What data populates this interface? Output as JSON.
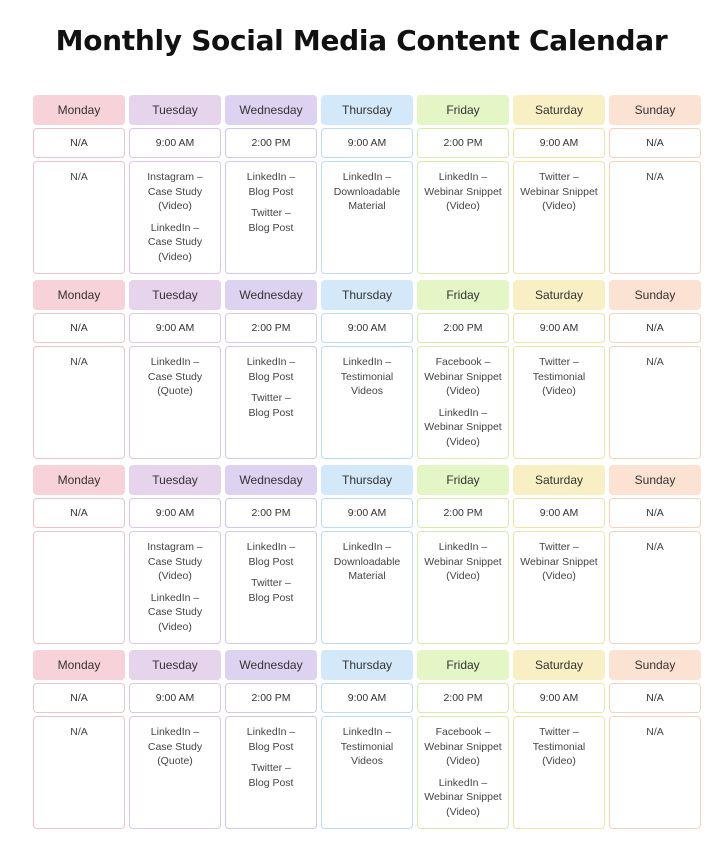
{
  "title": "Monthly Social Media Content Calendar",
  "colors": {
    "monday": "#f7d2d8",
    "tuesday": "#e6d3ec",
    "wednesday": "#ddd2f0",
    "thursday": "#d3e8f8",
    "friday": "#e4f5c6",
    "saturday": "#f8f0c4",
    "sunday": "#fbe2d2"
  },
  "weeks": [
    {
      "days": [
        {
          "day": "Monday",
          "time": "N/A",
          "posts": [
            "N/A"
          ]
        },
        {
          "day": "Tuesday",
          "time": "9:00 AM",
          "posts": [
            "Instagram –\nCase Study\n(Video)",
            "LinkedIn –\nCase Study\n(Video)"
          ]
        },
        {
          "day": "Wednesday",
          "time": "2:00 PM",
          "posts": [
            "LinkedIn –\nBlog Post",
            "Twitter –\nBlog Post"
          ]
        },
        {
          "day": "Thursday",
          "time": "9:00 AM",
          "posts": [
            "LinkedIn –\nDownloadable\nMaterial"
          ]
        },
        {
          "day": "Friday",
          "time": "2:00 PM",
          "posts": [
            "LinkedIn –\nWebinar Snippet\n(Video)"
          ]
        },
        {
          "day": "Saturday",
          "time": "9:00 AM",
          "posts": [
            "Twitter –\nWebinar Snippet\n(Video)"
          ]
        },
        {
          "day": "Sunday",
          "time": "N/A",
          "posts": [
            "N/A"
          ]
        }
      ]
    },
    {
      "days": [
        {
          "day": "Monday",
          "time": "N/A",
          "posts": [
            "N/A"
          ]
        },
        {
          "day": "Tuesday",
          "time": "9:00 AM",
          "posts": [
            "LinkedIn –\nCase Study\n(Quote)"
          ]
        },
        {
          "day": "Wednesday",
          "time": "2:00 PM",
          "posts": [
            "LinkedIn –\nBlog Post",
            "Twitter –\nBlog Post"
          ]
        },
        {
          "day": "Thursday",
          "time": "9:00 AM",
          "posts": [
            "LinkedIn –\nTestimonial\nVideos"
          ]
        },
        {
          "day": "Friday",
          "time": "2:00 PM",
          "posts": [
            "Facebook –\nWebinar Snippet\n(Video)",
            "LinkedIn –\nWebinar Snippet\n(Video)"
          ]
        },
        {
          "day": "Saturday",
          "time": "9:00 AM",
          "posts": [
            "Twitter –\nTestimonial\n(Video)"
          ]
        },
        {
          "day": "Sunday",
          "time": "N/A",
          "posts": [
            "N/A"
          ]
        }
      ]
    },
    {
      "days": [
        {
          "day": "Monday",
          "time": "N/A",
          "posts": []
        },
        {
          "day": "Tuesday",
          "time": "9:00 AM",
          "posts": [
            "Instagram –\nCase Study\n(Video)",
            "LinkedIn –\nCase Study\n(Video)"
          ]
        },
        {
          "day": "Wednesday",
          "time": "2:00 PM",
          "posts": [
            "LinkedIn –\nBlog Post",
            "Twitter –\nBlog Post"
          ]
        },
        {
          "day": "Thursday",
          "time": "9:00 AM",
          "posts": [
            "LinkedIn –\nDownloadable\nMaterial"
          ]
        },
        {
          "day": "Friday",
          "time": "2:00 PM",
          "posts": [
            "LinkedIn –\nWebinar Snippet\n(Video)"
          ]
        },
        {
          "day": "Saturday",
          "time": "9:00 AM",
          "posts": [
            "Twitter –\nWebinar Snippet\n(Video)"
          ]
        },
        {
          "day": "Sunday",
          "time": "N/A",
          "posts": [
            "N/A"
          ]
        }
      ]
    },
    {
      "days": [
        {
          "day": "Monday",
          "time": "N/A",
          "posts": [
            "N/A"
          ]
        },
        {
          "day": "Tuesday",
          "time": "9:00 AM",
          "posts": [
            "LinkedIn –\nCase Study\n(Quote)"
          ]
        },
        {
          "day": "Wednesday",
          "time": "2:00 PM",
          "posts": [
            "LinkedIn –\nBlog Post",
            "Twitter –\nBlog Post"
          ]
        },
        {
          "day": "Thursday",
          "time": "9:00 AM",
          "posts": [
            "LinkedIn –\nTestimonial\nVideos"
          ]
        },
        {
          "day": "Friday",
          "time": "2:00 PM",
          "posts": [
            "Facebook –\nWebinar Snippet\n(Video)",
            "LinkedIn –\nWebinar Snippet\n(Video)"
          ]
        },
        {
          "day": "Saturday",
          "time": "9:00 AM",
          "posts": [
            "Twitter –\nTestimonial\n(Video)"
          ]
        },
        {
          "day": "Sunday",
          "time": "N/A",
          "posts": [
            "N/A"
          ]
        }
      ]
    }
  ]
}
